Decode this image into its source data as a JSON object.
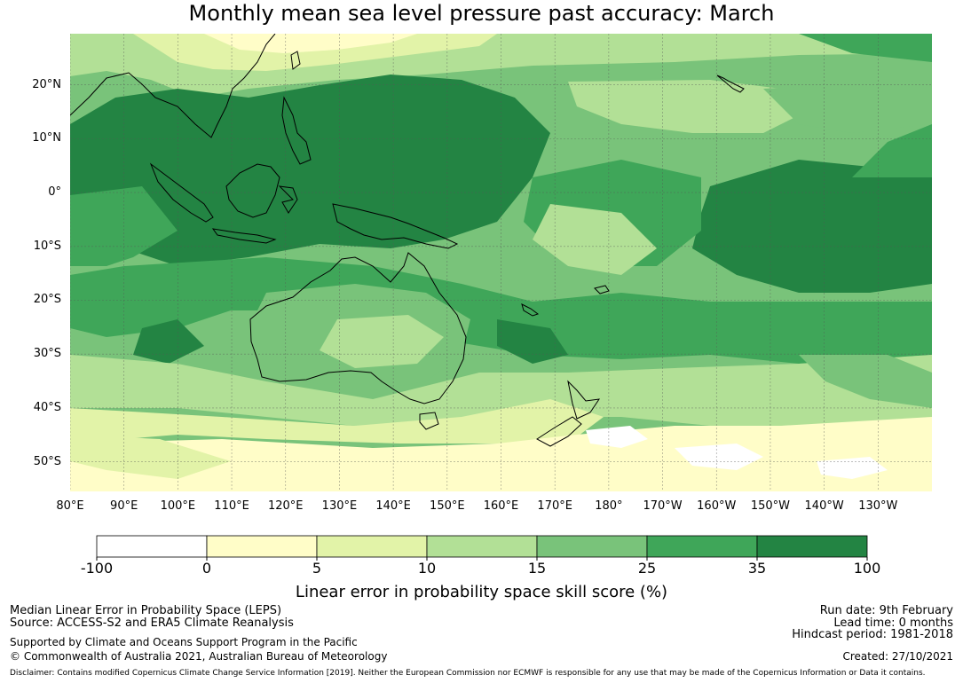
{
  "title": "Monthly mean sea level pressure past accuracy: March",
  "map": {
    "lat_labels": [
      "20°N",
      "10°N",
      "0°",
      "10°S",
      "20°S",
      "30°S",
      "40°S",
      "50°S"
    ],
    "lat_values": [
      20,
      10,
      0,
      -10,
      -20,
      -30,
      -40,
      -50
    ],
    "lon_labels": [
      "80°E",
      "90°E",
      "100°E",
      "110°E",
      "120°E",
      "130°E",
      "140°E",
      "150°E",
      "160°E",
      "170°E",
      "180°",
      "170°W",
      "160°W",
      "150°W",
      "140°W",
      "130°W"
    ],
    "lon_values": [
      80,
      90,
      100,
      110,
      120,
      130,
      140,
      150,
      160,
      170,
      180,
      190,
      200,
      210,
      220,
      230
    ],
    "lon_range": [
      80,
      240
    ],
    "lat_range": [
      -55.5,
      29.5
    ]
  },
  "colorbar": {
    "ticks": [
      "-100",
      "0",
      "5",
      "10",
      "15",
      "25",
      "35",
      "100"
    ],
    "colors": [
      "#ffffff",
      "#fffdc8",
      "#e2f3a8",
      "#b2e096",
      "#79c37a",
      "#3fa659",
      "#238443"
    ],
    "label": "Linear error in probability space skill score (%)"
  },
  "footer": {
    "line1": "Median Linear Error in Probability Space (LEPS)",
    "line2": "Source: ACCESS-S2 and ERA5 Climate Reanalysis",
    "line3": "Supported by Climate and Oceans Support Program in the Pacific",
    "line4": "© Commonwealth of Australia 2021, Australian Bureau of Meteorology",
    "run_date": "Run date: 9th February",
    "lead_time": "Lead time: 0 months",
    "hindcast": "Hindcast period: 1981-2018",
    "created": "Created: 27/10/2021",
    "disclaimer": "Disclaimer: Contains modified Copernicus Climate Change Service Information [2019]. Neither the European Commission nor ECMWF is responsible for any use that may be made of the Copernicus Information or Data it contains."
  }
}
